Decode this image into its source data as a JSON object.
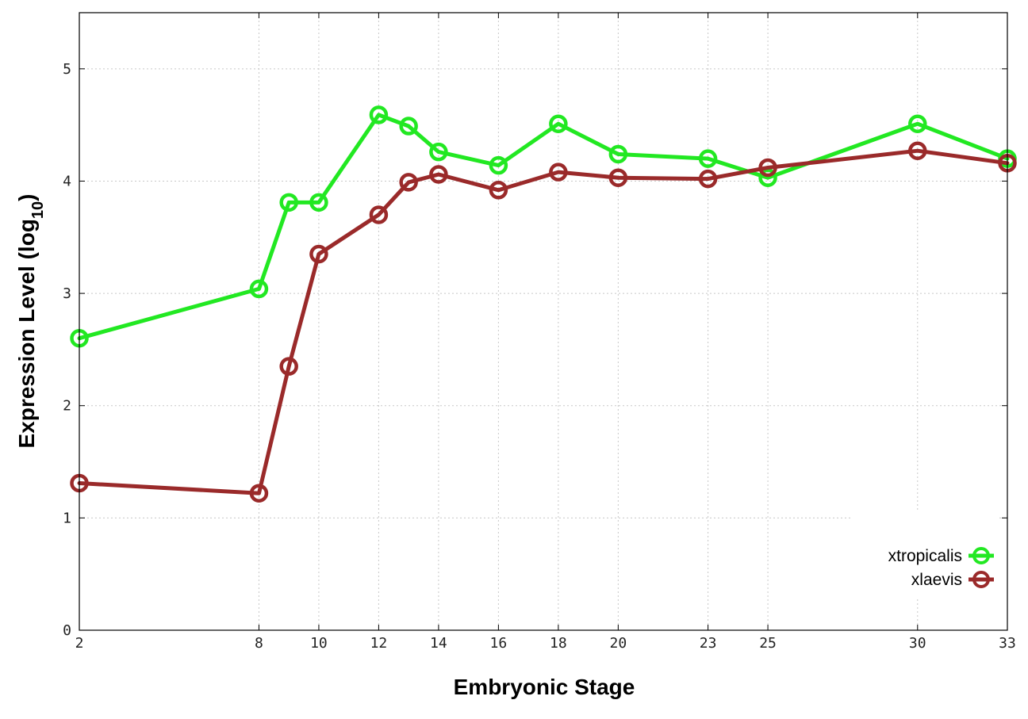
{
  "chart_data": {
    "type": "line",
    "xlabel": "Embryonic Stage",
    "ylabel_main": "Expression Level (log",
    "ylabel_sub": "10",
    "ylabel_close": ")",
    "xlim": [
      2,
      33
    ],
    "ylim": [
      0,
      5.5
    ],
    "x_ticks": [
      2,
      8,
      10,
      12,
      14,
      16,
      18,
      20,
      23,
      25,
      30,
      33
    ],
    "y_ticks": [
      0,
      1,
      2,
      3,
      4,
      5
    ],
    "grid": true,
    "legend_position": "bottom-right",
    "x": [
      2,
      8,
      9,
      10,
      12,
      13,
      14,
      16,
      18,
      20,
      23,
      25,
      30,
      33
    ],
    "x_labels": [
      "2",
      "8",
      "10",
      "12",
      "14",
      "16",
      "18",
      "20",
      "23",
      "25",
      "30",
      "33"
    ],
    "y_labels": [
      "0",
      "1",
      "2",
      "3",
      "4",
      "5"
    ],
    "series": [
      {
        "name": "xtropicalis",
        "color": "#22e822",
        "values": [
          2.6,
          3.04,
          3.81,
          3.81,
          4.59,
          4.49,
          4.26,
          4.14,
          4.51,
          4.24,
          4.2,
          4.03,
          4.51,
          4.2
        ]
      },
      {
        "name": "xlaevis",
        "color": "#9a2a2a",
        "values": [
          1.31,
          1.22,
          2.35,
          3.35,
          3.7,
          3.99,
          4.06,
          3.92,
          4.08,
          4.03,
          4.02,
          4.12,
          4.27,
          4.16
        ]
      }
    ]
  }
}
